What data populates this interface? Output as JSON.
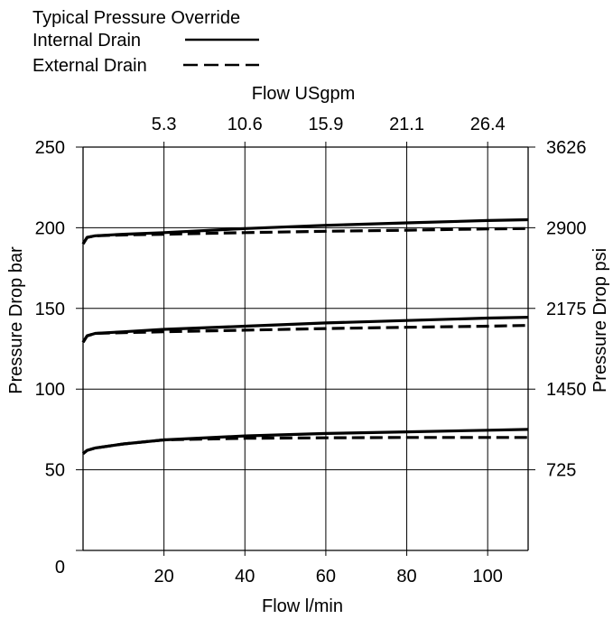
{
  "legend": {
    "title": "Typical Pressure Override",
    "entries": [
      {
        "label": "Internal Drain",
        "style": "solid"
      },
      {
        "label": "External Drain",
        "style": "dashed"
      }
    ]
  },
  "chart_data": {
    "type": "line",
    "xlabel": "Flow l/min",
    "ylabel": "Pressure Drop bar",
    "x2label": "Flow USgpm",
    "y2label": "Pressure Drop psi",
    "xlim": [
      0,
      110
    ],
    "ylim": [
      0,
      250
    ],
    "x_ticks": [
      20,
      40,
      60,
      80,
      100
    ],
    "y_ticks": [
      50,
      100,
      150,
      200,
      250
    ],
    "y_zero_label": "0",
    "x2_ticks": [
      {
        "at": 20,
        "label": "5.3"
      },
      {
        "at": 40,
        "label": "10.6"
      },
      {
        "at": 60,
        "label": "15.9"
      },
      {
        "at": 80,
        "label": "21.1"
      },
      {
        "at": 100,
        "label": "26.4"
      }
    ],
    "y2_ticks": [
      {
        "at": 50,
        "label": "725"
      },
      {
        "at": 100,
        "label": "1450"
      },
      {
        "at": 150,
        "label": "2175"
      },
      {
        "at": 200,
        "label": "2900"
      },
      {
        "at": 250,
        "label": "3626"
      }
    ],
    "grid": true,
    "legend_position": "top-left",
    "colors": {
      "line": "#000000",
      "grid": "#000000"
    },
    "series": [
      {
        "name": "Internal Drain",
        "group": "high",
        "style": "solid",
        "x": [
          0,
          1,
          3,
          10,
          20,
          40,
          60,
          80,
          100,
          110
        ],
        "y": [
          190,
          194,
          195,
          196,
          197,
          199.5,
          201.5,
          203,
          204.5,
          205
        ]
      },
      {
        "name": "External Drain",
        "group": "high",
        "style": "dashed",
        "x": [
          0,
          1,
          3,
          10,
          20,
          40,
          60,
          80,
          100,
          110
        ],
        "y": [
          190,
          194,
          195,
          195.5,
          196,
          197,
          197.8,
          198.5,
          199.3,
          199.5
        ]
      },
      {
        "name": "Internal Drain",
        "group": "mid",
        "style": "solid",
        "x": [
          0,
          1,
          3,
          10,
          20,
          40,
          60,
          80,
          100,
          110
        ],
        "y": [
          129,
          133,
          134.5,
          135.5,
          137,
          139,
          141,
          142.5,
          144,
          144.5
        ]
      },
      {
        "name": "External Drain",
        "group": "mid",
        "style": "dashed",
        "x": [
          0,
          1,
          3,
          10,
          20,
          40,
          60,
          80,
          100,
          110
        ],
        "y": [
          129,
          133,
          134.5,
          135,
          135.5,
          136.5,
          137.5,
          138.3,
          139,
          139.5
        ]
      },
      {
        "name": "Internal Drain",
        "group": "low",
        "style": "solid",
        "x": [
          0,
          1,
          3,
          10,
          20,
          40,
          60,
          80,
          100,
          110
        ],
        "y": [
          60,
          62,
          63.5,
          66,
          68.5,
          71,
          72.5,
          73.5,
          74.5,
          75
        ]
      },
      {
        "name": "External Drain",
        "group": "low",
        "style": "dashed",
        "x": [
          0,
          1,
          3,
          10,
          20,
          40,
          60,
          80,
          100,
          110
        ],
        "y": [
          60,
          62,
          63.5,
          66,
          68.5,
          69.5,
          69.8,
          70,
          70,
          70
        ]
      }
    ]
  }
}
